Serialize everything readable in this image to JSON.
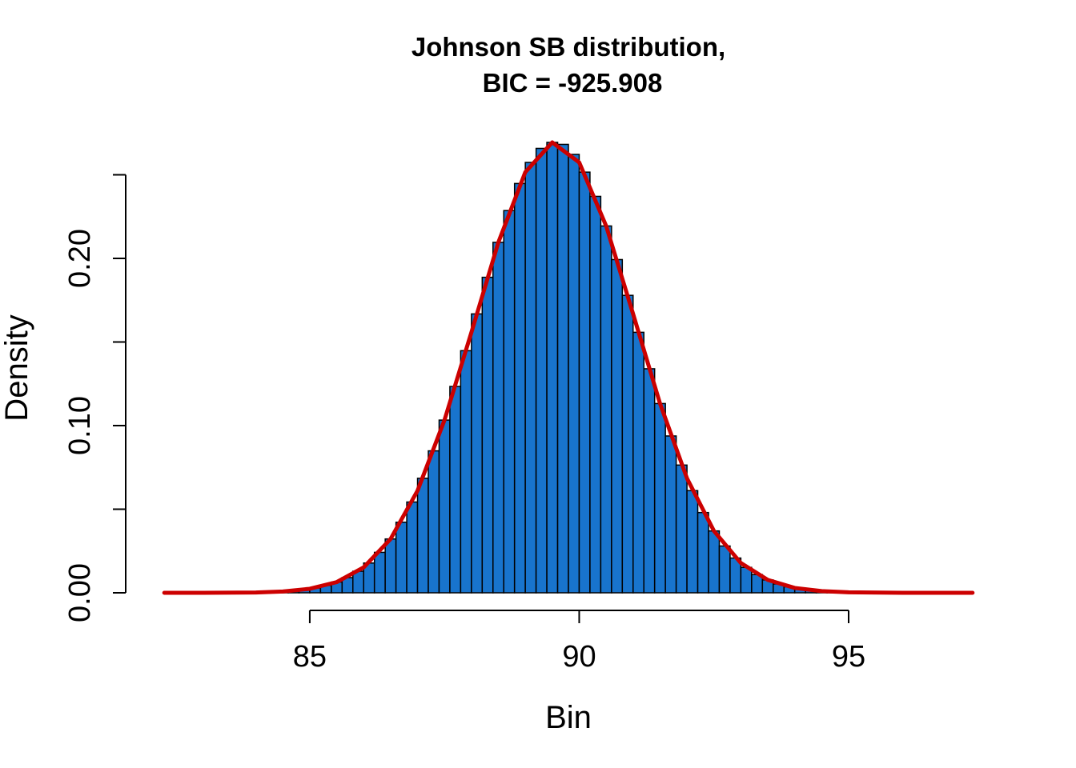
{
  "chart_data": {
    "type": "histogram",
    "title": [
      "Johnson SB distribution,",
      "BIC = -925.908"
    ],
    "xlabel": "Bin",
    "ylabel": "Density",
    "color": "#1874cd",
    "edgecolor": "#000000",
    "bins": [
      84.0,
      84.2,
      84.4,
      84.6,
      84.8,
      85.0,
      85.2,
      85.4,
      85.6,
      85.8,
      86.0,
      86.2,
      86.4,
      86.6,
      86.8,
      87.0,
      87.2,
      87.4,
      87.6,
      87.8,
      88.0,
      88.2,
      88.4,
      88.6,
      88.8,
      89.0,
      89.2,
      89.4,
      89.6,
      89.8,
      90.0,
      90.2,
      90.4,
      90.6,
      90.8,
      91.0,
      91.2,
      91.4,
      91.6,
      91.8,
      92.0,
      92.2,
      92.4,
      92.6,
      92.8,
      93.0,
      93.2,
      93.4,
      93.6,
      93.8,
      94.0,
      94.2,
      94.4,
      94.6,
      94.8,
      95.0,
      95.2
    ],
    "values": [
      0.0003,
      0.0005,
      0.0008,
      0.0013,
      0.0019,
      0.0029,
      0.0044,
      0.0064,
      0.0091,
      0.0129,
      0.0178,
      0.0242,
      0.0322,
      0.0422,
      0.0543,
      0.0685,
      0.0849,
      0.1033,
      0.1234,
      0.1448,
      0.1668,
      0.1887,
      0.2096,
      0.2286,
      0.2448,
      0.2574,
      0.2658,
      0.2694,
      0.2682,
      0.2622,
      0.2516,
      0.2371,
      0.2194,
      0.1993,
      0.1779,
      0.1558,
      0.134,
      0.1132,
      0.0938,
      0.0764,
      0.0611,
      0.048,
      0.037,
      0.028,
      0.0208,
      0.0152,
      0.0109,
      0.0077,
      0.0053,
      0.0036,
      0.0024,
      0.0016,
      0.001,
      0.0006,
      0.0004,
      0.0002
    ],
    "curve": {
      "color": "#cc0000",
      "x": [
        82.3,
        83.0,
        84.0,
        84.5,
        85.0,
        85.5,
        86.0,
        86.5,
        87.0,
        87.5,
        88.0,
        88.5,
        89.0,
        89.5,
        90.0,
        90.5,
        91.0,
        91.5,
        92.0,
        92.5,
        93.0,
        93.5,
        94.0,
        94.5,
        95.0,
        96.0,
        97.3
      ],
      "y": [
        0,
        0,
        0.0002,
        0.0008,
        0.0024,
        0.0064,
        0.0152,
        0.0322,
        0.0611,
        0.1033,
        0.1558,
        0.2096,
        0.2516,
        0.2694,
        0.2574,
        0.2194,
        0.1668,
        0.1132,
        0.0685,
        0.037,
        0.0178,
        0.0077,
        0.0029,
        0.001,
        0.0003,
        0,
        0
      ]
    },
    "xlim": [
      82,
      97.6
    ],
    "xticks": [
      85,
      90,
      95
    ],
    "ylim": [
      0,
      0.25
    ],
    "yticks": [
      {
        "value": 0,
        "label": "0.00"
      },
      {
        "value": 0.1,
        "label": "0.10"
      },
      {
        "value": 0.2,
        "label": "0.20"
      }
    ],
    "yticks_minor": [
      0.05,
      0.15,
      0.25
    ]
  }
}
